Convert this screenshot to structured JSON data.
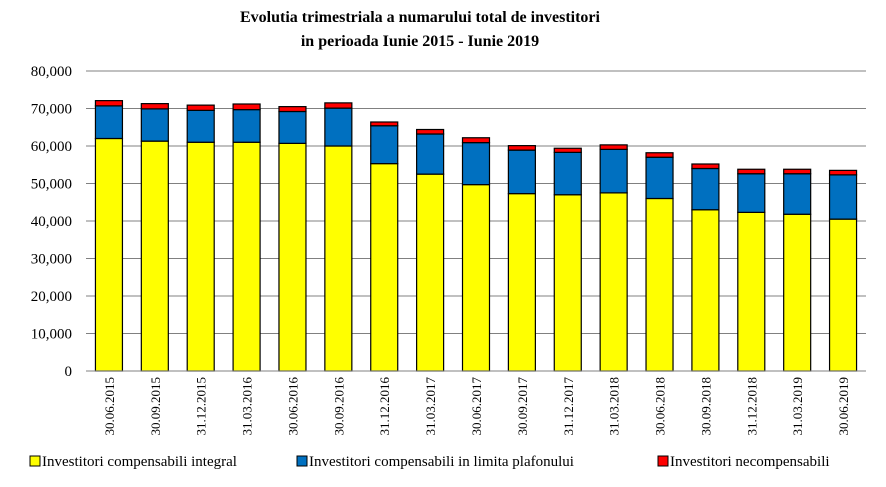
{
  "chart_data": {
    "type": "bar",
    "stacked": true,
    "title_line1": "Evolutia trimestriala a numarului total de investitori",
    "title_line2": "in perioada Iunie 2015 - Iunie 2019",
    "xlabel": "",
    "ylabel": "",
    "ylim": [
      0,
      80000
    ],
    "y_ticks": [
      "0",
      "10,000",
      "20,000",
      "30,000",
      "40,000",
      "50,000",
      "60,000",
      "70,000",
      "80,000"
    ],
    "grid": true,
    "legend_position": "bottom",
    "categories": [
      "30.06.2015",
      "30.09.2015",
      "31.12.2015",
      "31.03.2016",
      "30.06.2016",
      "30.09.2016",
      "31.12.2016",
      "31.03.2017",
      "30.06.2017",
      "30.09.2017",
      "31.12.2017",
      "31.03.2018",
      "30.06.2018",
      "30.09.2018",
      "31.12.2018",
      "31.03.2019",
      "30.06.2019"
    ],
    "series": [
      {
        "name": "Investitori compensabili integral",
        "color": "#ffff00",
        "values": [
          62000,
          61300,
          61000,
          61000,
          60700,
          60000,
          55300,
          52500,
          49700,
          47300,
          47000,
          47500,
          46000,
          43000,
          42300,
          41800,
          40500
        ]
      },
      {
        "name": "Investitori compensabili in limita plafonului",
        "color": "#0070c0",
        "values": [
          8700,
          8600,
          8500,
          8700,
          8500,
          10100,
          10100,
          10700,
          11200,
          11600,
          11300,
          11600,
          11000,
          11000,
          10300,
          10800,
          11800
        ]
      },
      {
        "name": "Investitori necompensabili",
        "color": "#ff0000",
        "values": [
          1400,
          1400,
          1400,
          1500,
          1300,
          1400,
          1000,
          1200,
          1300,
          1200,
          1100,
          1200,
          1200,
          1200,
          1200,
          1200,
          1200
        ]
      }
    ]
  }
}
